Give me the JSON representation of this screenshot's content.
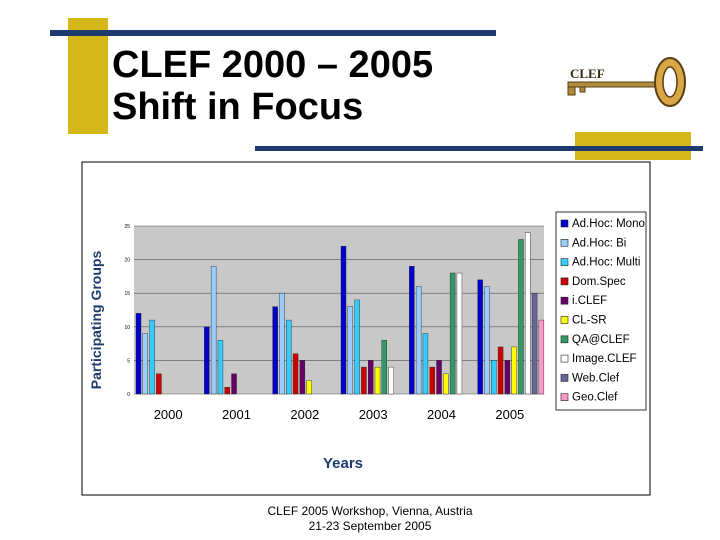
{
  "slide": {
    "title_line1": "CLEF 2000 – 2005",
    "title_line2": "Shift in Focus",
    "logo_text": "CLEF",
    "footer_line1": "CLEF 2005 Workshop, Vienna, Austria",
    "footer_line2": "21-23 September 2005"
  },
  "chart_data": {
    "type": "bar",
    "xlabel": "Years",
    "ylabel": "Participating Groups",
    "ylim": [
      0,
      25
    ],
    "yticks": [
      0,
      5,
      10,
      15,
      20,
      25
    ],
    "legend_position": "right",
    "categories": [
      "2000",
      "2001",
      "2002",
      "2003",
      "2004",
      "2005"
    ],
    "series": [
      {
        "name": "Ad.Hoc: Mono",
        "color": "#0000CC",
        "values": [
          12,
          10,
          13,
          22,
          19,
          17
        ]
      },
      {
        "name": "Ad.Hoc: Bi",
        "color": "#99CCFF",
        "values": [
          9,
          19,
          15,
          13,
          16,
          16
        ]
      },
      {
        "name": "Ad.Hoc: Multi",
        "color": "#33CCFF",
        "values": [
          11,
          8,
          11,
          14,
          9,
          5
        ]
      },
      {
        "name": "Dom.Spec",
        "color": "#CC0000",
        "values": [
          3,
          1,
          6,
          4,
          4,
          7
        ]
      },
      {
        "name": "i.CLEF",
        "color": "#660066",
        "values": [
          0,
          3,
          5,
          5,
          5,
          5
        ]
      },
      {
        "name": "CL-SR",
        "color": "#FFFF00",
        "values": [
          0,
          0,
          2,
          4,
          3,
          7
        ]
      },
      {
        "name": "QA@CLEF",
        "color": "#339966",
        "values": [
          0,
          0,
          0,
          8,
          18,
          23
        ]
      },
      {
        "name": "Image.CLEF",
        "color": "#FFFFFF",
        "values": [
          0,
          0,
          0,
          4,
          18,
          24
        ]
      },
      {
        "name": "Web.Clef",
        "color": "#666699",
        "values": [
          0,
          0,
          0,
          0,
          0,
          15
        ]
      },
      {
        "name": "Geo.Clef",
        "color": "#FF99CC",
        "values": [
          0,
          0,
          0,
          0,
          0,
          11
        ]
      }
    ]
  },
  "colors": {
    "gold": "#D4B81A",
    "navy": "#1F3A6E"
  }
}
